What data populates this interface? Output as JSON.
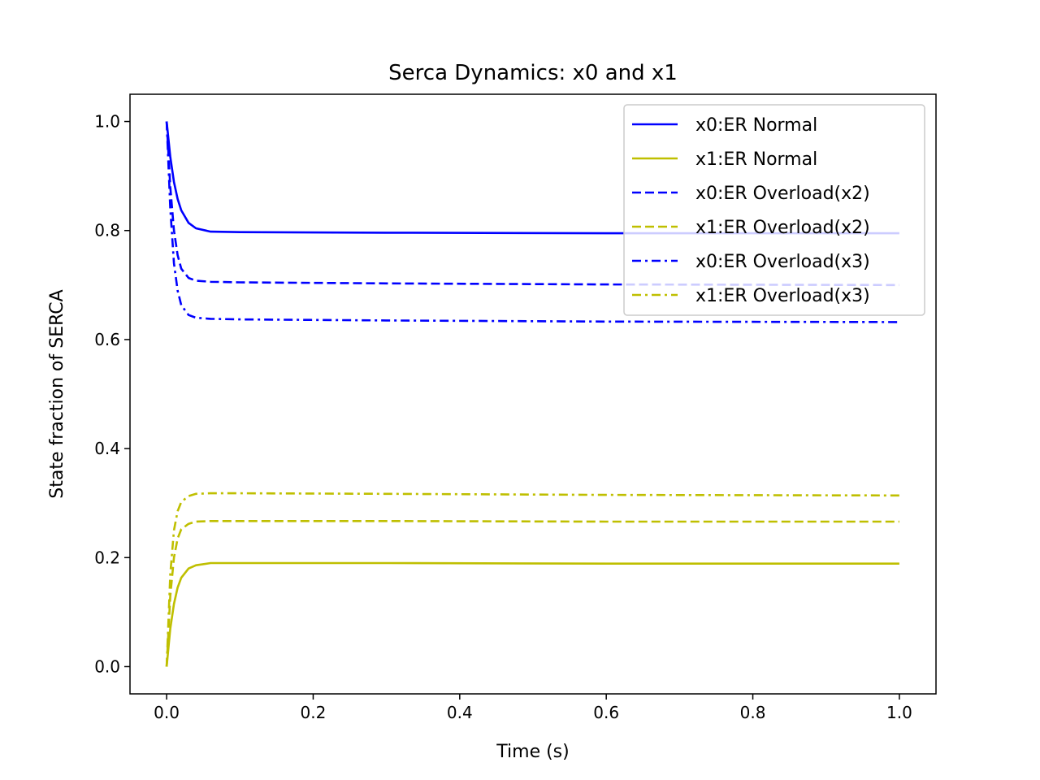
{
  "chart_data": {
    "type": "line",
    "title": "Serca Dynamics: x0 and x1",
    "xlabel": "Time (s)",
    "ylabel": "State fraction of SERCA",
    "xlim": [
      -0.05,
      1.05
    ],
    "ylim": [
      -0.05,
      1.05
    ],
    "xticks": [
      0.0,
      0.2,
      0.4,
      0.6,
      0.8,
      1.0
    ],
    "xtick_labels": [
      "0.0",
      "0.2",
      "0.4",
      "0.6",
      "0.8",
      "1.0"
    ],
    "yticks": [
      0.0,
      0.2,
      0.4,
      0.6,
      0.8,
      1.0
    ],
    "ytick_labels": [
      "0.0",
      "0.2",
      "0.4",
      "0.6",
      "0.8",
      "1.0"
    ],
    "grid": false,
    "legend_position": "top-right",
    "series": [
      {
        "name": "x0:ER Normal",
        "color": "#0000ff",
        "style": "solid",
        "points": [
          [
            0.0,
            1.0
          ],
          [
            0.005,
            0.935
          ],
          [
            0.01,
            0.889
          ],
          [
            0.015,
            0.858
          ],
          [
            0.02,
            0.837
          ],
          [
            0.03,
            0.814
          ],
          [
            0.04,
            0.804
          ],
          [
            0.06,
            0.798
          ],
          [
            0.1,
            0.797
          ],
          [
            0.3,
            0.796
          ],
          [
            0.6,
            0.795
          ],
          [
            1.0,
            0.795
          ]
        ]
      },
      {
        "name": "x1:ER Normal",
        "color": "#bfbf00",
        "style": "solid",
        "points": [
          [
            0.0,
            0.0
          ],
          [
            0.005,
            0.07
          ],
          [
            0.01,
            0.115
          ],
          [
            0.015,
            0.145
          ],
          [
            0.02,
            0.163
          ],
          [
            0.03,
            0.18
          ],
          [
            0.04,
            0.186
          ],
          [
            0.06,
            0.19
          ],
          [
            0.1,
            0.19
          ],
          [
            0.3,
            0.19
          ],
          [
            0.6,
            0.189
          ],
          [
            1.0,
            0.189
          ]
        ]
      },
      {
        "name": "x0:ER Overload(x2)",
        "color": "#0000ff",
        "style": "dashed",
        "points": [
          [
            0.0,
            1.0
          ],
          [
            0.005,
            0.88
          ],
          [
            0.01,
            0.8
          ],
          [
            0.015,
            0.755
          ],
          [
            0.02,
            0.73
          ],
          [
            0.03,
            0.713
          ],
          [
            0.04,
            0.708
          ],
          [
            0.06,
            0.706
          ],
          [
            0.1,
            0.705
          ],
          [
            0.3,
            0.703
          ],
          [
            0.6,
            0.701
          ],
          [
            1.0,
            0.7
          ]
        ]
      },
      {
        "name": "x1:ER Overload(x2)",
        "color": "#bfbf00",
        "style": "dashed",
        "points": [
          [
            0.0,
            0.0
          ],
          [
            0.005,
            0.13
          ],
          [
            0.01,
            0.2
          ],
          [
            0.015,
            0.235
          ],
          [
            0.02,
            0.252
          ],
          [
            0.03,
            0.262
          ],
          [
            0.04,
            0.266
          ],
          [
            0.06,
            0.267
          ],
          [
            0.1,
            0.267
          ],
          [
            0.3,
            0.267
          ],
          [
            0.6,
            0.266
          ],
          [
            1.0,
            0.266
          ]
        ]
      },
      {
        "name": "x0:ER Overload(x3)",
        "color": "#0000ff",
        "style": "dashdot",
        "points": [
          [
            0.0,
            1.0
          ],
          [
            0.005,
            0.84
          ],
          [
            0.01,
            0.74
          ],
          [
            0.015,
            0.69
          ],
          [
            0.02,
            0.663
          ],
          [
            0.03,
            0.645
          ],
          [
            0.04,
            0.64
          ],
          [
            0.06,
            0.638
          ],
          [
            0.1,
            0.637
          ],
          [
            0.3,
            0.635
          ],
          [
            0.6,
            0.633
          ],
          [
            1.0,
            0.632
          ]
        ]
      },
      {
        "name": "x1:ER Overload(x3)",
        "color": "#bfbf00",
        "style": "dashdot",
        "points": [
          [
            0.0,
            0.0
          ],
          [
            0.005,
            0.17
          ],
          [
            0.01,
            0.25
          ],
          [
            0.015,
            0.285
          ],
          [
            0.02,
            0.302
          ],
          [
            0.03,
            0.313
          ],
          [
            0.04,
            0.317
          ],
          [
            0.06,
            0.318
          ],
          [
            0.1,
            0.318
          ],
          [
            0.3,
            0.317
          ],
          [
            0.6,
            0.315
          ],
          [
            1.0,
            0.314
          ]
        ]
      }
    ]
  }
}
